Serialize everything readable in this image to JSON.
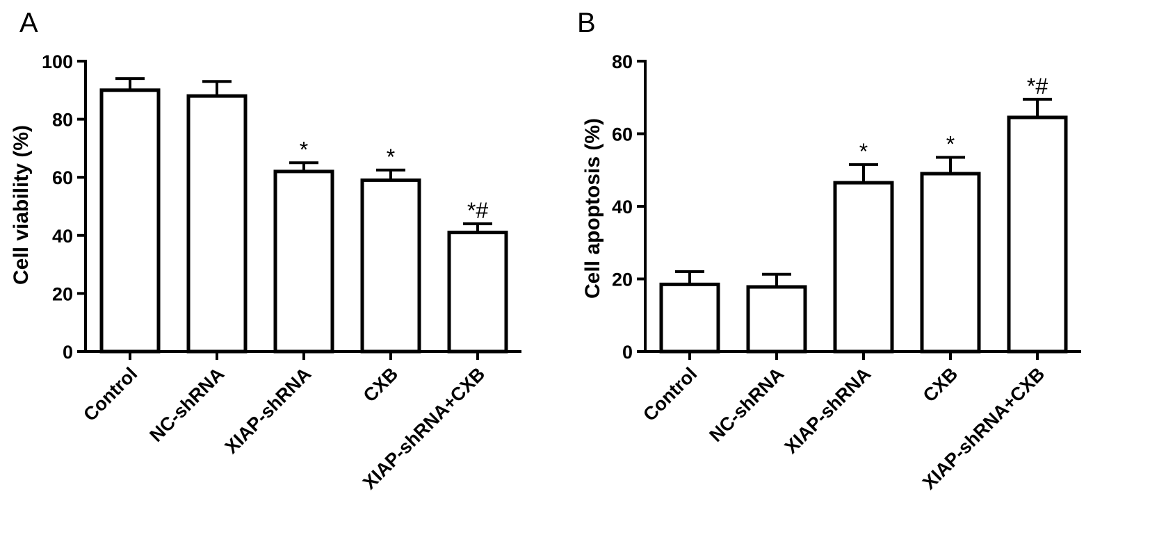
{
  "chart_data": [
    {
      "type": "bar",
      "panel": "A",
      "categories": [
        "Control",
        "NC-shRNA",
        "XIAP-shRNA",
        "CXB",
        "XIAP-shRNA+CXB"
      ],
      "values": [
        90,
        88,
        62,
        59,
        41
      ],
      "errors": [
        4,
        5,
        3,
        3.5,
        3
      ],
      "annotations": [
        "",
        "",
        "*",
        "*",
        "*#"
      ],
      "ylabel": "Cell viability (%)",
      "xlabel": "",
      "title": "",
      "ylim": [
        0,
        100
      ],
      "yticks": [
        0,
        20,
        40,
        60,
        80,
        100
      ],
      "ytick_labels": [
        "0",
        "20",
        "40",
        "60",
        "80",
        "100"
      ],
      "grid": false,
      "bar_color": "#ffffff",
      "edge_color": "#000000"
    },
    {
      "type": "bar",
      "panel": "B",
      "categories": [
        "Control",
        "NC-shRNA",
        "XIAP-shRNA",
        "CXB",
        "XIAP-shRNA+CXB"
      ],
      "values": [
        18.5,
        17.8,
        46.5,
        49,
        64.5
      ],
      "errors": [
        3.5,
        3.5,
        5,
        4.5,
        5
      ],
      "annotations": [
        "",
        "",
        "*",
        "*",
        "*#"
      ],
      "ylabel": "Cell apoptosis (%)",
      "xlabel": "",
      "title": "",
      "ylim": [
        0,
        80
      ],
      "yticks": [
        0,
        20,
        40,
        60,
        80
      ],
      "ytick_labels": [
        "0",
        "20",
        "40",
        "60",
        "80"
      ],
      "grid": false,
      "bar_color": "#ffffff",
      "edge_color": "#000000"
    }
  ]
}
